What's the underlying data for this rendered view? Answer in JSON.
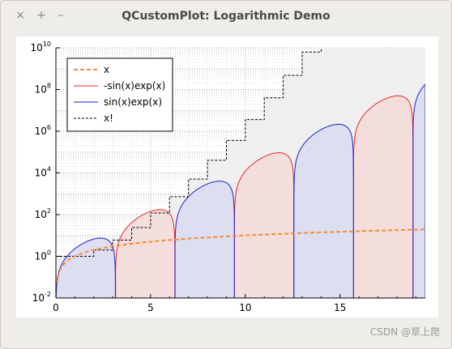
{
  "window": {
    "title": "QCustomPlot: Logarithmic Demo",
    "controls": {
      "close": "×",
      "maximize": "+",
      "minimize": "–"
    }
  },
  "watermark": "CSDN @草上爬",
  "chart_data": {
    "type": "line",
    "x_axis": {
      "range": [
        0,
        19.5
      ],
      "ticks": [
        0,
        5,
        10,
        15
      ],
      "tick_labels": [
        "0",
        "5",
        "10",
        "15"
      ],
      "grid": true
    },
    "y_axis": {
      "scale": "log",
      "range": [
        0.01,
        10000000000
      ],
      "ticks": [
        0.01,
        1,
        100,
        10000,
        1000000,
        100000000,
        10000000000
      ],
      "tick_labels": [
        [
          "10",
          "-2"
        ],
        [
          "10",
          "0"
        ],
        [
          "10",
          "2"
        ],
        [
          "10",
          "4"
        ],
        [
          "10",
          "6"
        ],
        [
          "10",
          "8"
        ],
        [
          "10",
          "10"
        ]
      ],
      "grid": true
    },
    "legend": {
      "position": "top-left"
    },
    "series": [
      {
        "name": "x",
        "color": "#f28d3a",
        "style": "dashed",
        "function": "x"
      },
      {
        "name": "-sin(x)exp(x)",
        "color": "#e8262a",
        "fill": "#f3dad8",
        "function": "-sin(x)exp(x)"
      },
      {
        "name": " sin(x)exp(x)",
        "color": "#1a22d6",
        "fill": "#d9dbf0",
        "function": "sin(x)exp(x)"
      },
      {
        "name": "x!",
        "color": "#000000",
        "fill": "#efefef",
        "style": "dashed-step",
        "function": "floor(x)!"
      }
    ]
  }
}
